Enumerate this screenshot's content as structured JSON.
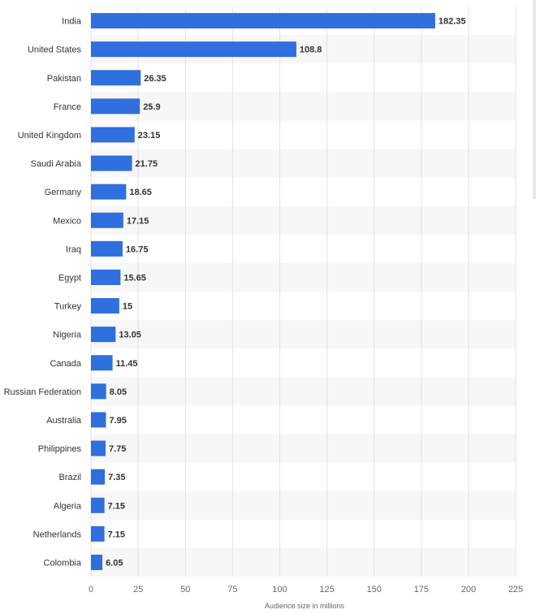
{
  "chart_data": {
    "type": "bar",
    "orientation": "horizontal",
    "categories": [
      "India",
      "United States",
      "Pakistan",
      "France",
      "United Kingdom",
      "Saudi Arabia",
      "Germany",
      "Mexico",
      "Iraq",
      "Egypt",
      "Turkey",
      "Nigeria",
      "Canada",
      "Russian Federation",
      "Australia",
      "Philippines",
      "Brazil",
      "Algeria",
      "Netherlands",
      "Colombia"
    ],
    "values": [
      182.35,
      108.8,
      26.35,
      25.9,
      23.15,
      21.75,
      18.65,
      17.15,
      16.75,
      15.65,
      15,
      13.05,
      11.45,
      8.05,
      7.95,
      7.75,
      7.35,
      7.15,
      7.15,
      6.05
    ],
    "value_labels": [
      "182.35",
      "108.8",
      "26.35",
      "25.9",
      "23.15",
      "21.75",
      "18.65",
      "17.15",
      "16.75",
      "15.65",
      "15",
      "13.05",
      "11.45",
      "8.05",
      "7.95",
      "7.75",
      "7.35",
      "7.15",
      "7.15",
      "6.05"
    ],
    "xlabel": "Audience size in millions",
    "xticks": [
      0,
      25,
      50,
      75,
      100,
      125,
      150,
      175,
      200,
      225
    ],
    "xlim": [
      0,
      225
    ],
    "grid": true,
    "bar_color": "#2f6fde",
    "stripe_color": "#f7f7f7"
  }
}
